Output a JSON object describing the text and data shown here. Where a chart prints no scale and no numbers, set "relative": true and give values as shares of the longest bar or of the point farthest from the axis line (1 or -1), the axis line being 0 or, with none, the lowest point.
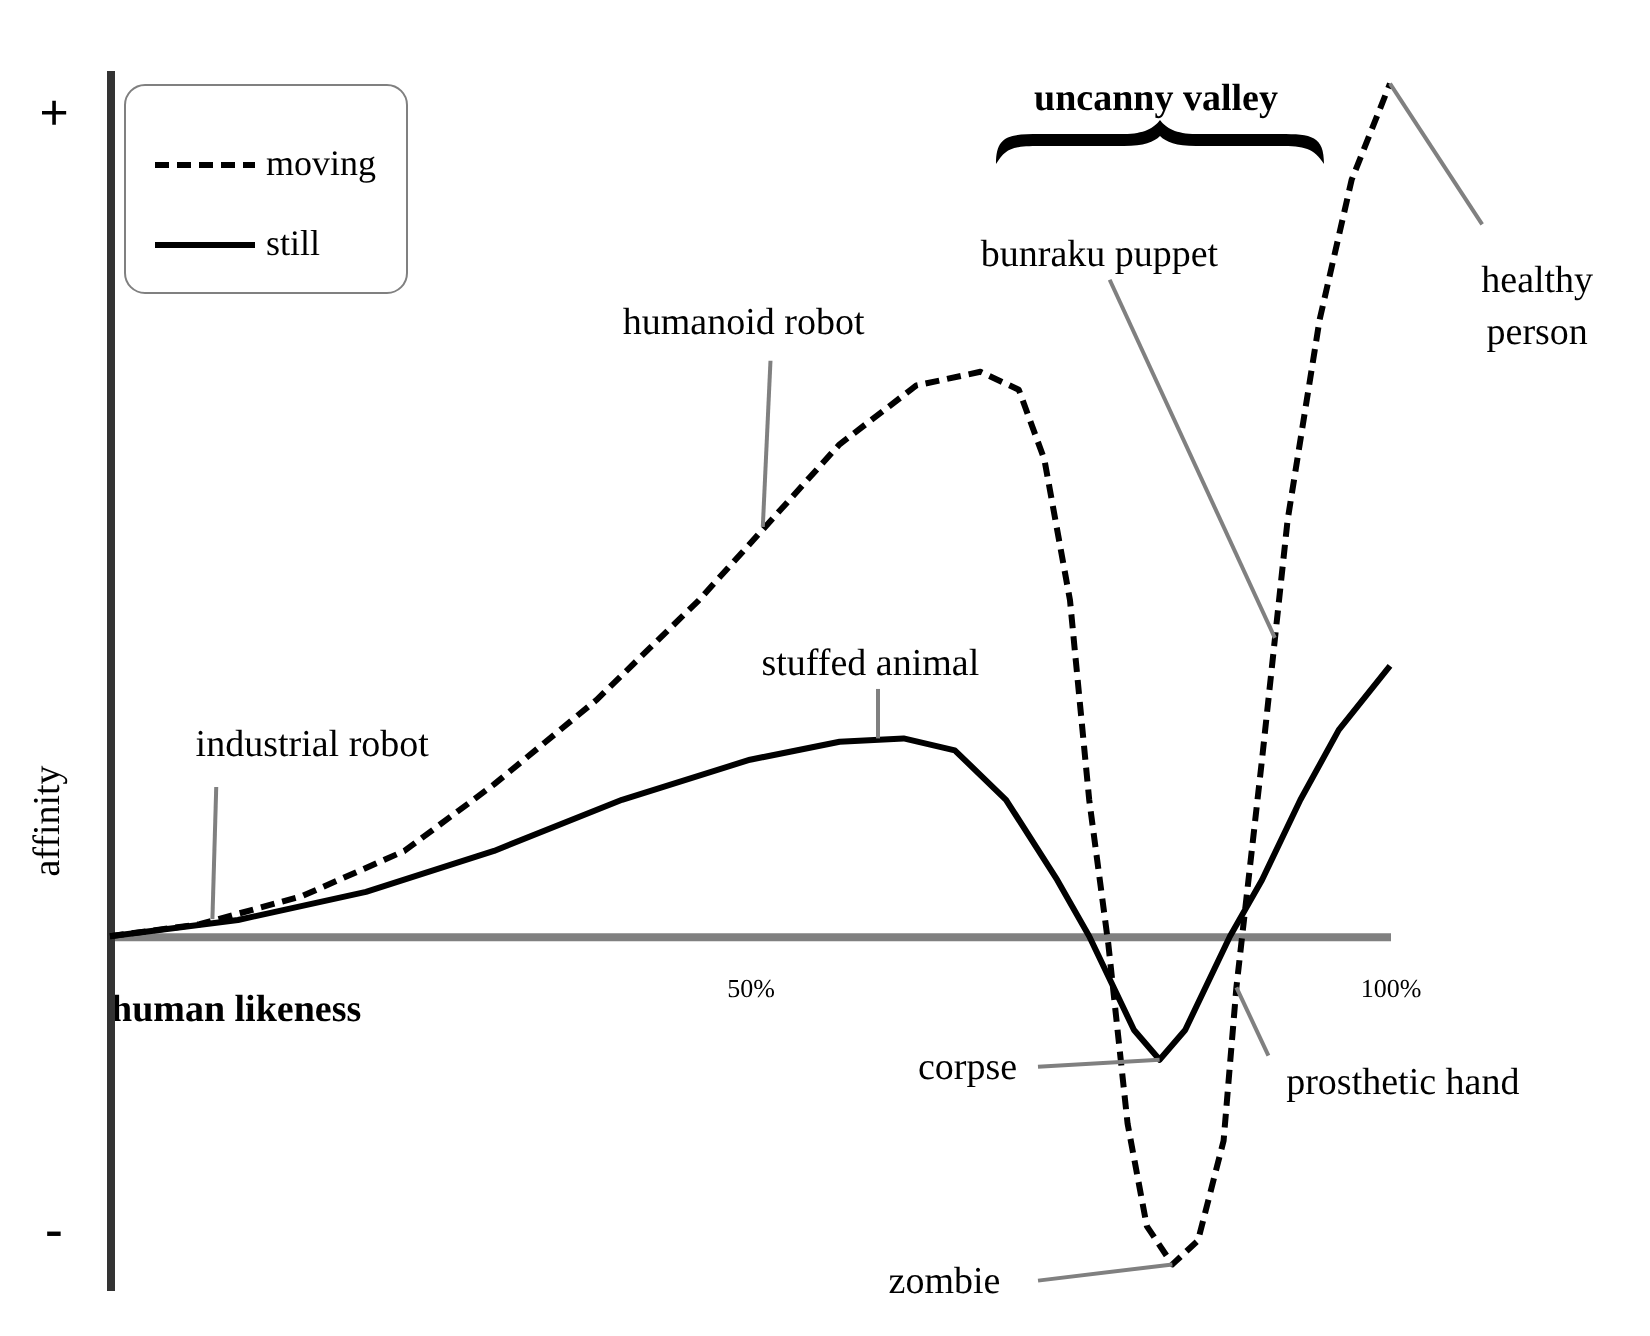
{
  "chart_data": {
    "type": "line",
    "xlabel": "human likeness",
    "ylabel": "affinity",
    "relative": true,
    "xlim": [
      0,
      100
    ],
    "xticks": [
      {
        "value": 50,
        "label": "50%"
      },
      {
        "value": 100,
        "label": "100%"
      }
    ],
    "legend": "top left",
    "series": [
      {
        "name": "moving",
        "color": "#000000",
        "line_style": "dashed",
        "x": [
          0,
          7,
          15,
          23,
          30,
          38,
          46,
          51,
          57,
          63,
          68,
          71,
          73,
          75,
          76.5,
          78,
          79.5,
          81,
          83,
          85,
          87,
          88,
          90,
          92,
          94.5,
          97,
          100
        ],
        "values": [
          0,
          0.014,
          0.047,
          0.1,
          0.178,
          0.277,
          0.394,
          0.477,
          0.577,
          0.646,
          0.662,
          0.641,
          0.559,
          0.394,
          0.16,
          -0.01,
          -0.22,
          -0.34,
          -0.385,
          -0.357,
          -0.24,
          -0.06,
          0.207,
          0.488,
          0.723,
          0.887,
          1.0
        ]
      },
      {
        "name": "still",
        "color": "#000000",
        "line_style": "solid",
        "x": [
          0,
          10,
          20,
          30,
          40,
          50,
          57,
          62,
          66,
          70,
          74,
          76.5,
          80,
          82,
          84,
          87.5,
          90,
          93,
          96,
          100
        ],
        "values": [
          0,
          0.019,
          0.052,
          0.1,
          0.16,
          0.207,
          0.228,
          0.232,
          0.218,
          0.16,
          0.066,
          0,
          -0.11,
          -0.145,
          -0.11,
          0,
          0.066,
          0.16,
          0.242,
          0.317
        ]
      }
    ],
    "annotations": [
      "+",
      "-",
      "uncanny valley",
      {
        "text": "industrial robot",
        "x": 8,
        "y": 0.02
      },
      {
        "text": "humanoid robot",
        "x": 51,
        "y": 0.48
      },
      {
        "text": "stuffed animal",
        "x": 60,
        "y": 0.232
      },
      {
        "text": "bunraku puppet",
        "x": 91,
        "y": 0.35
      },
      {
        "text": "healthy person",
        "x": 100,
        "y": 1.0
      },
      {
        "text": "corpse",
        "x": 82,
        "y": -0.145
      },
      {
        "text": "prosthetic hand",
        "x": 88,
        "y": -0.06
      },
      {
        "text": "zombie",
        "x": 83,
        "y": -0.385
      }
    ]
  }
}
